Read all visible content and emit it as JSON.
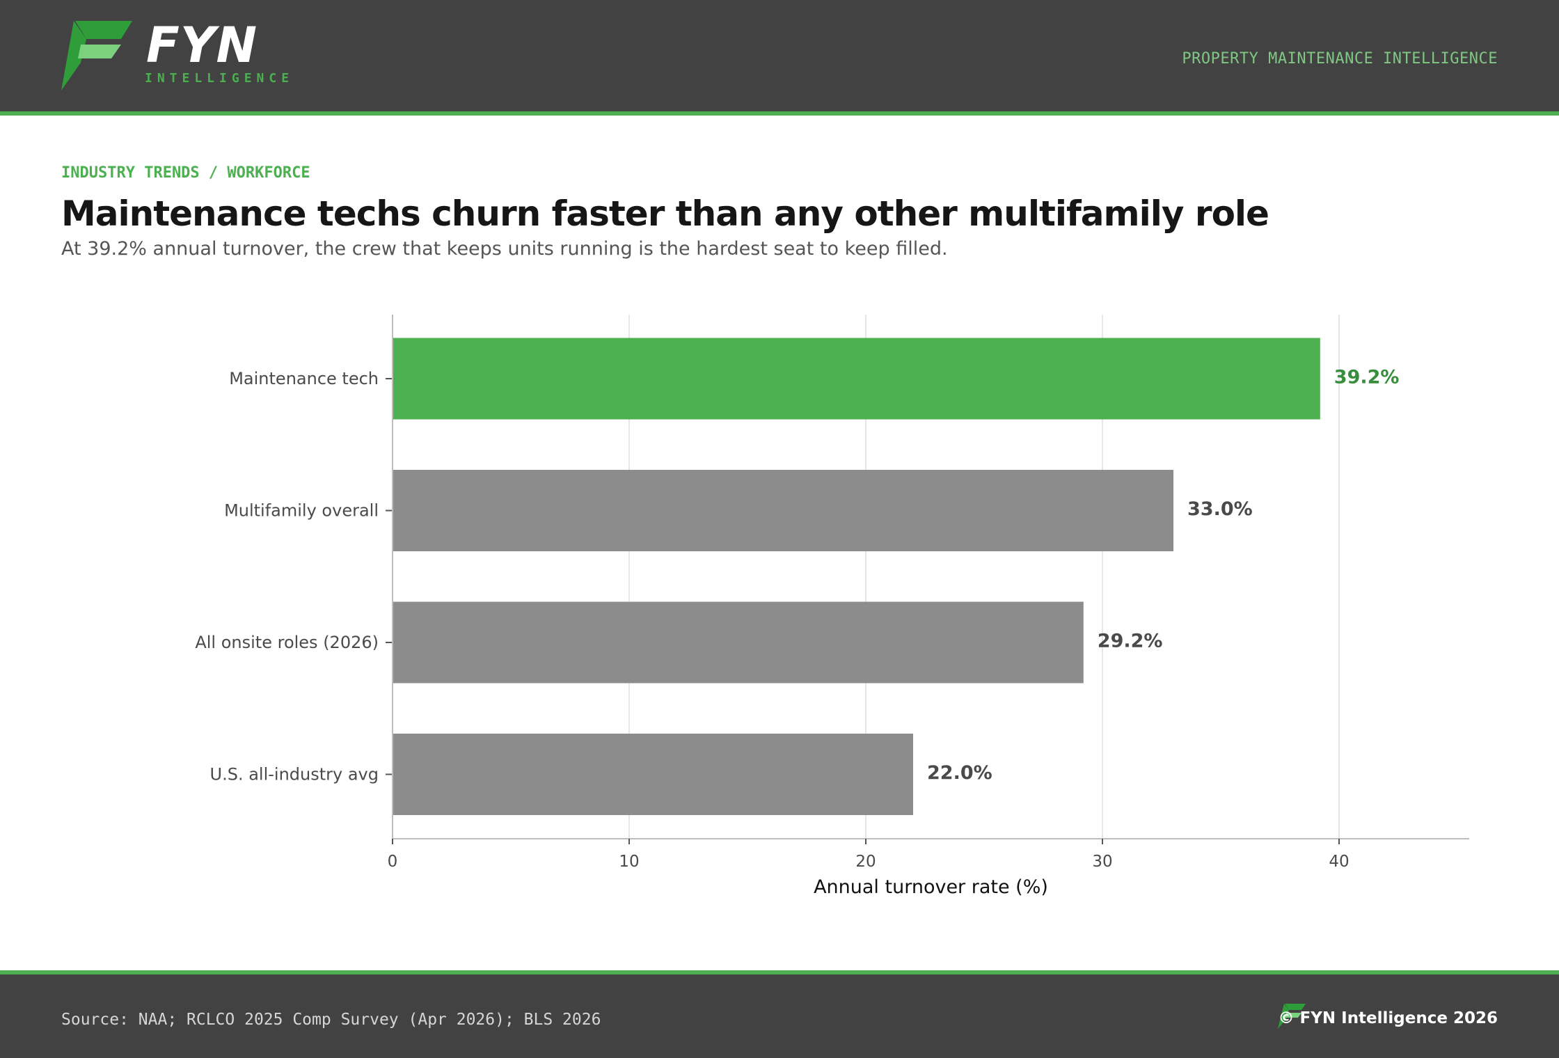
{
  "header": {
    "brand": "FYN",
    "brand_sub": "INTELLIGENCE",
    "tagline": "PROPERTY MAINTENANCE INTELLIGENCE"
  },
  "kicker": "INDUSTRY TRENDS / WORKFORCE",
  "title": "Maintenance techs churn faster than any other multifamily role",
  "subtitle": "At 39.2% annual turnover, the crew that keeps units running is the hardest seat to keep filled.",
  "colors": {
    "highlight": "#4caf50",
    "highlight_label": "#388e3c",
    "bar": "#8c8c8c",
    "label": "#4a4a4a"
  },
  "chart_data": {
    "type": "bar",
    "orientation": "horizontal",
    "categories": [
      "Maintenance tech",
      "Multifamily overall",
      "All onsite roles (2026)",
      "U.S. all-industry avg"
    ],
    "values": [
      39.2,
      33.0,
      29.2,
      22.0
    ],
    "value_labels": [
      "39.2%",
      "33.0%",
      "29.2%",
      "22.0%"
    ],
    "highlighted": "Maintenance tech",
    "xlabel": "Annual turnover rate (%)",
    "xlim": [
      0,
      45.5
    ],
    "xticks": [
      0,
      10,
      20,
      30,
      40
    ],
    "grid": true
  },
  "footer": {
    "source": "Source: NAA; RCLCO 2025 Comp Survey (Apr 2026); BLS 2026",
    "copyright": "© FYN Intelligence 2026"
  }
}
